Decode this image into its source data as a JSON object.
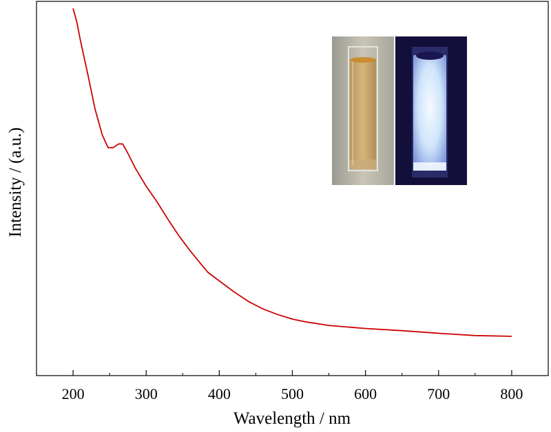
{
  "chart_data": {
    "type": "line",
    "title": "",
    "xlabel": "Wavelength / nm",
    "ylabel": "Intensity / (a.u.)",
    "xlim": [
      150,
      850
    ],
    "ylim": [
      0,
      100
    ],
    "x_ticks": [
      200,
      300,
      400,
      500,
      600,
      700,
      800
    ],
    "y_ticks_labeled": false,
    "grid": false,
    "legend": "none",
    "series": [
      {
        "color": "#cc0000",
        "x": [
          200,
          205,
          210,
          220,
          230,
          240,
          248,
          255,
          262,
          268,
          275,
          285,
          300,
          315,
          330,
          345,
          360,
          375,
          385,
          400,
          420,
          440,
          460,
          480,
          500,
          520,
          550,
          580,
          600,
          650,
          700,
          750,
          800
        ],
        "y": [
          98.1,
          94.6,
          89.6,
          80.7,
          71.3,
          64.3,
          60.9,
          60.9,
          61.9,
          61.9,
          59.4,
          55.5,
          50.6,
          46.4,
          41.7,
          37.3,
          33.4,
          29.8,
          27.5,
          25.3,
          22.4,
          19.8,
          17.8,
          16.3,
          15.1,
          14.3,
          13.4,
          12.9,
          12.6,
          12.0,
          11.3,
          10.7,
          10.5
        ]
      }
    ],
    "inset": {
      "type": "photo",
      "panels": [
        {
          "description_color": "#c8a468",
          "lighting": "daylight"
        },
        {
          "description_color": "#e8f3ff",
          "lighting": "uv"
        }
      ]
    }
  }
}
